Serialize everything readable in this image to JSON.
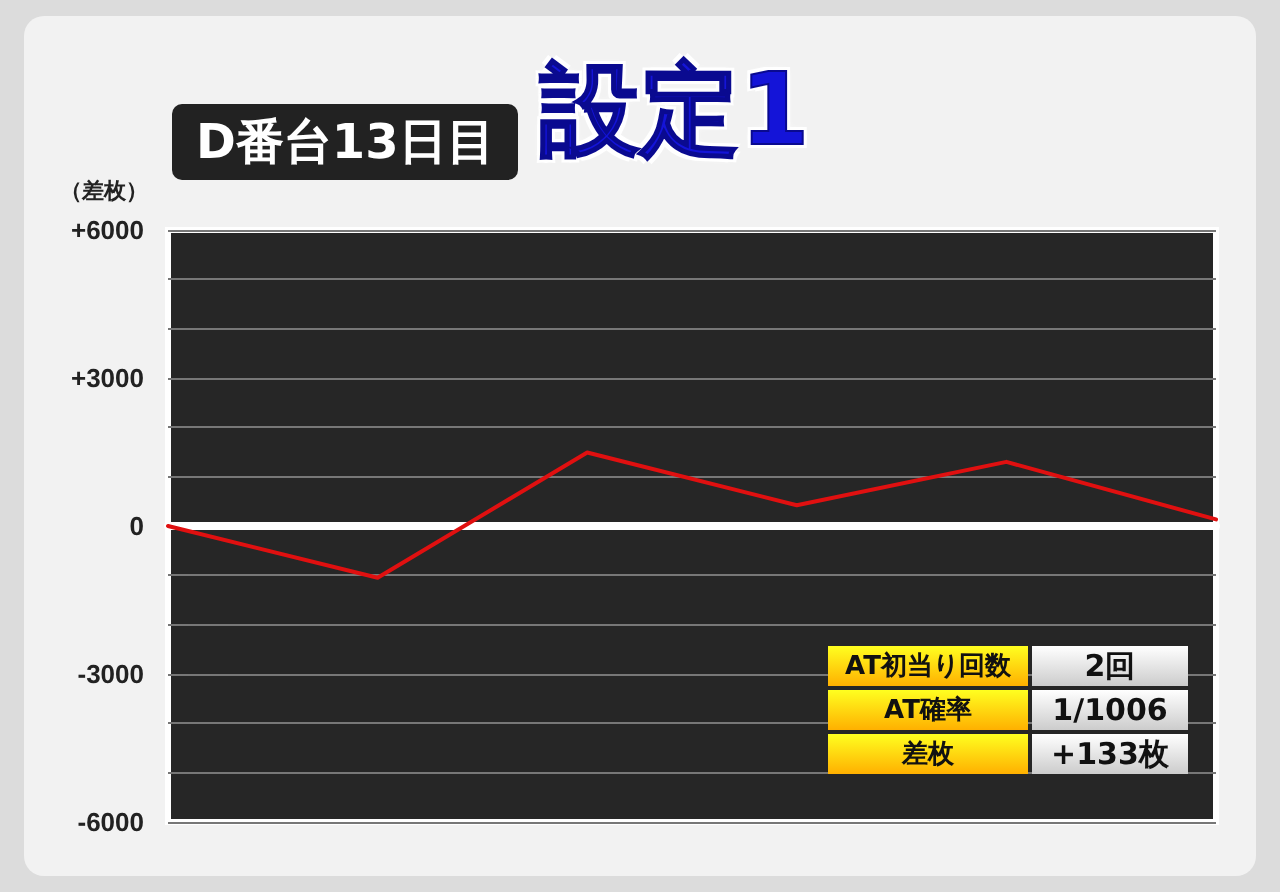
{
  "chart_data": {
    "type": "line",
    "title": "設定1",
    "subtitle": "D番台13日目",
    "ylabel": "（差枚）",
    "categories": [
      null,
      null,
      null,
      null,
      null,
      null
    ],
    "series": [
      {
        "color": "#e01010",
        "values": [
          0,
          -1050,
          1490,
          420,
          1300,
          133
        ]
      }
    ],
    "ylim": [
      -6000,
      6000
    ],
    "yticks": [
      {
        "value": -6000,
        "label": "-6000"
      },
      {
        "value": -5000,
        "label": null
      },
      {
        "value": -4000,
        "label": null
      },
      {
        "value": -3000,
        "label": "-3000"
      },
      {
        "value": -2000,
        "label": null
      },
      {
        "value": -1000,
        "label": null
      },
      {
        "value": 0,
        "label": "0"
      },
      {
        "value": 1000,
        "label": null
      },
      {
        "value": 2000,
        "label": null
      },
      {
        "value": 3000,
        "label": "+3000"
      },
      {
        "value": 4000,
        "label": null
      },
      {
        "value": 5000,
        "label": null
      },
      {
        "value": 6000,
        "label": "+6000"
      }
    ],
    "grid": "y",
    "tick_labels": "y",
    "marker": "none",
    "line_style": "solid",
    "annotations": [
      "AT初当り回数",
      "2回",
      "AT確率",
      "1/1006",
      "差枚",
      "+133枚"
    ]
  }
}
